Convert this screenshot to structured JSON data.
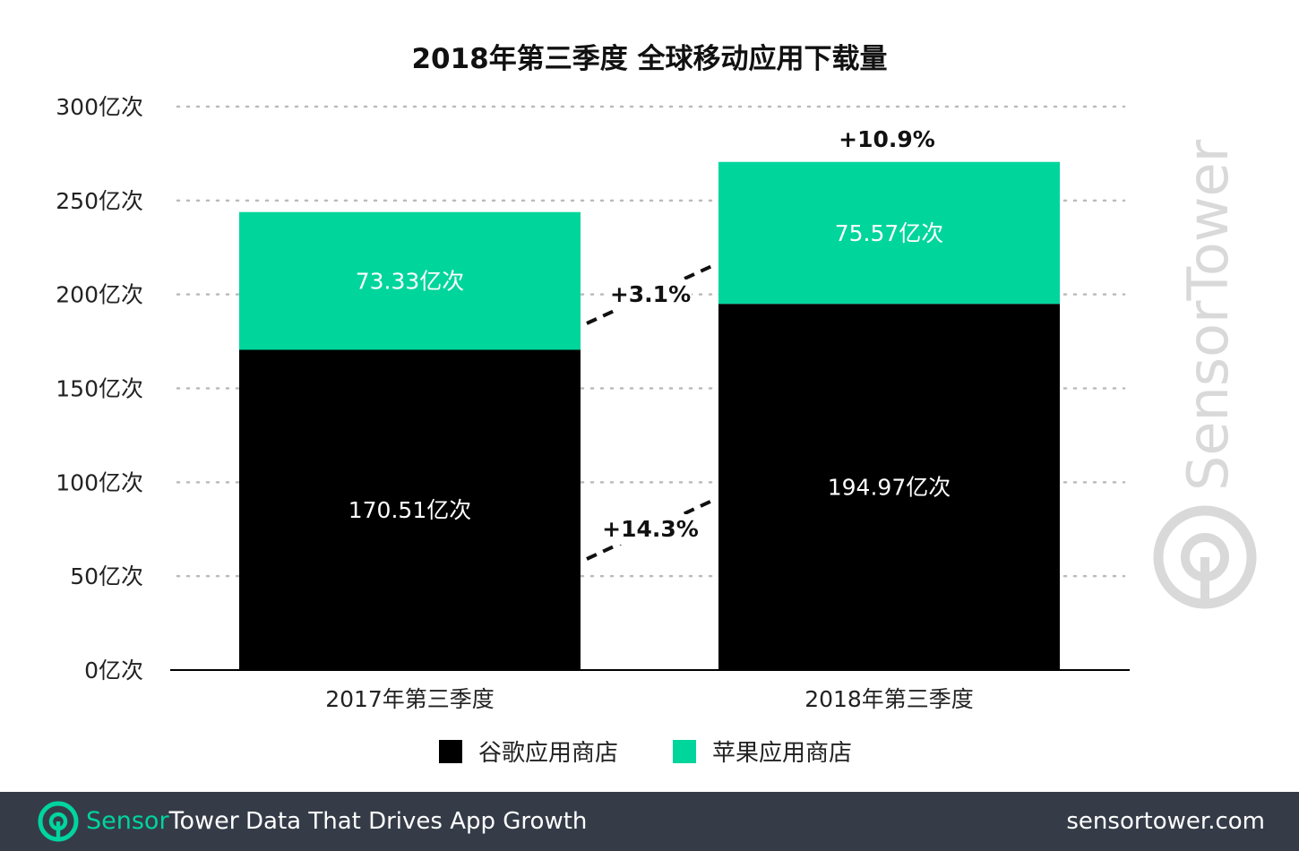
{
  "colors": {
    "google_play": "#000000",
    "app_store": "#00d59c",
    "footer_bg": "#353c48",
    "brand_accent": "#00d49f",
    "watermark": "#d9d9d9",
    "grid": "#bbbbbb"
  },
  "chart_data": {
    "type": "bar",
    "stacked": true,
    "title": "2018年第三季度 全球移动应用下载量",
    "categories": [
      "2017年第三季度",
      "2018年第三季度"
    ],
    "series": [
      {
        "name": "谷歌应用商店",
        "values": [
          170.51,
          194.97
        ],
        "labels": [
          "170.51亿次",
          "194.97亿次"
        ],
        "color": "#000000",
        "label_color": "#ffffff"
      },
      {
        "name": "苹果应用商店",
        "values": [
          73.33,
          75.57
        ],
        "labels": [
          "73.33亿次",
          "75.57亿次"
        ],
        "color": "#00d59c",
        "label_color": "#ffffff"
      }
    ],
    "yticks": [
      0,
      50,
      100,
      150,
      200,
      250,
      300
    ],
    "ytick_labels": [
      "0亿次",
      "50亿次",
      "100亿次",
      "150亿次",
      "200亿次",
      "250亿次",
      "300亿次"
    ],
    "ylim": [
      0,
      300
    ],
    "grid": "dotted",
    "legend_position": "bottom-center",
    "annotations": {
      "total_growth": "+10.9%",
      "app_store_growth": "+3.1%",
      "google_play_growth": "+14.3%"
    }
  },
  "watermark": {
    "text": "SensorTower",
    "icon": "sensortower-logo-icon"
  },
  "footer": {
    "brand_part1": "Sensor",
    "brand_part2": "Tower",
    "tagline": "Data That Drives App Growth",
    "website": "sensortower.com",
    "logo_icon": "sensortower-logo-icon"
  }
}
